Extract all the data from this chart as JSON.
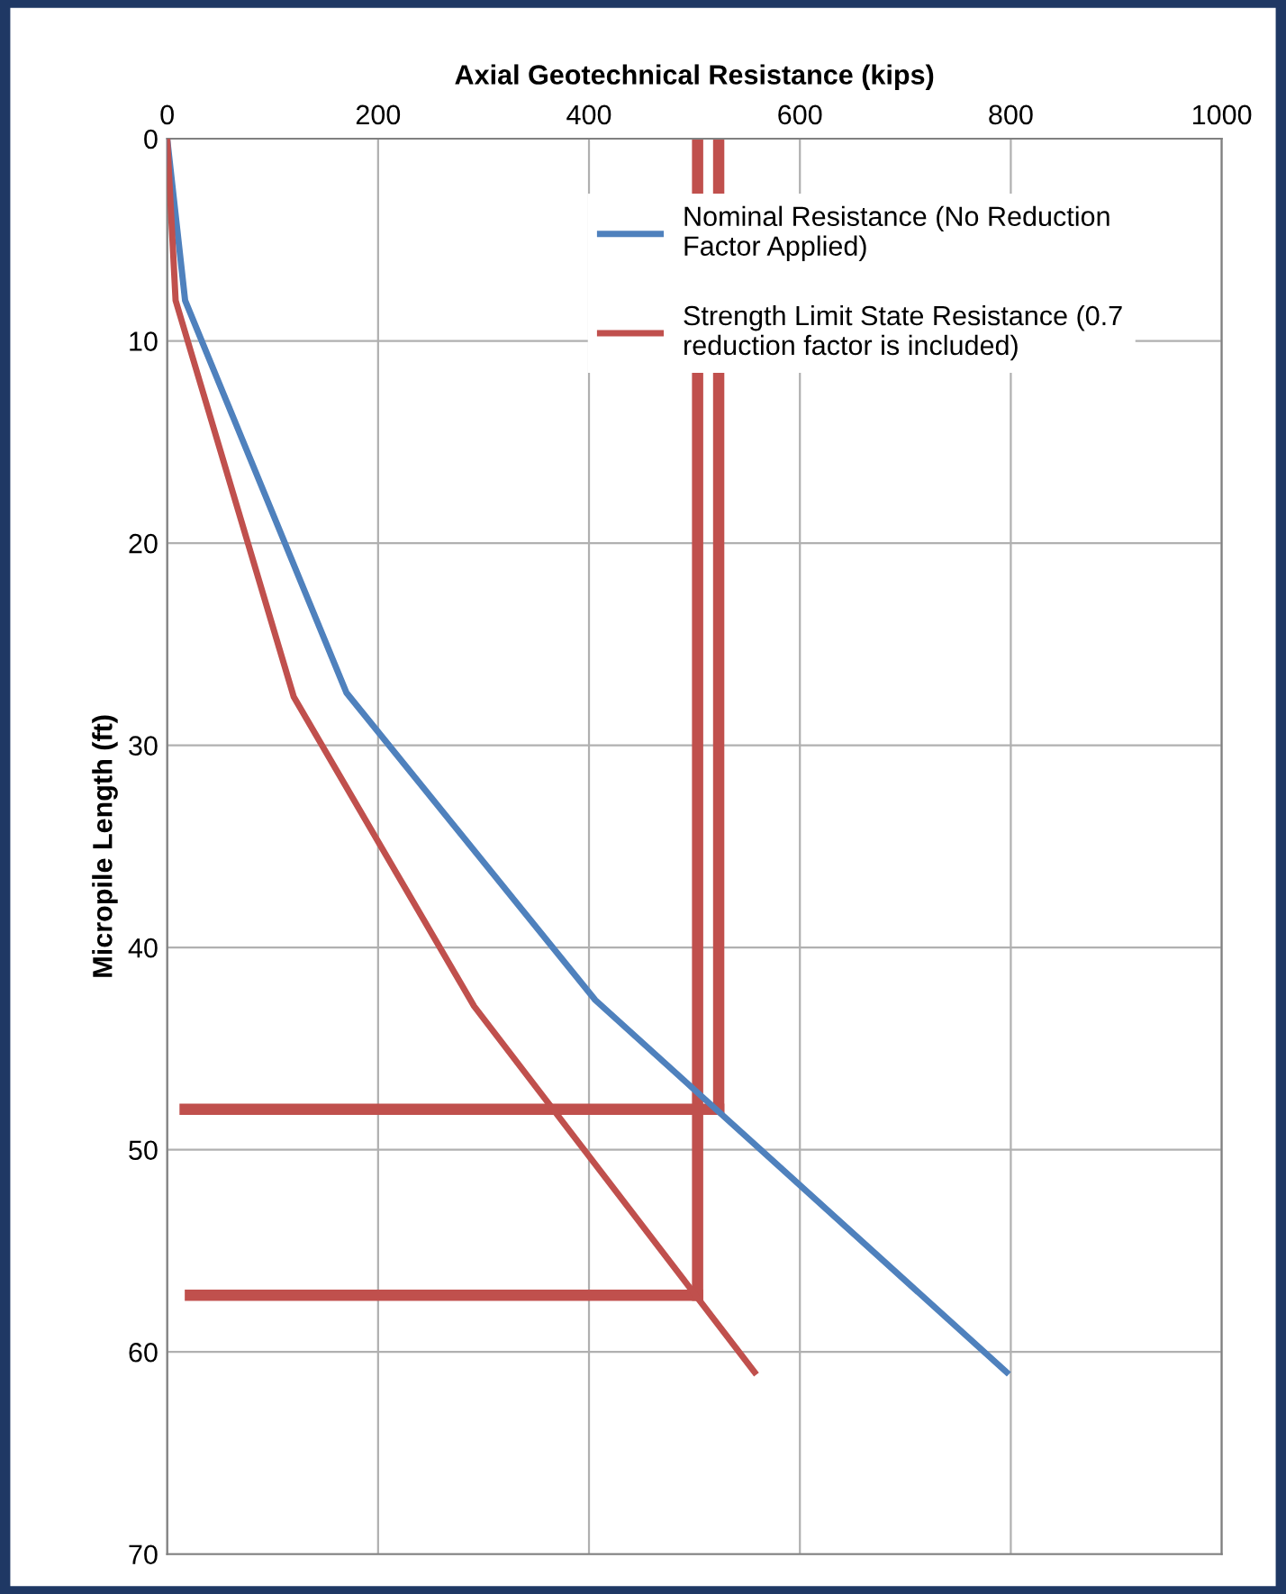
{
  "chart_data": {
    "type": "line",
    "xlabel": "Axial Geotechnical Resistance (kips)",
    "ylabel": "Micropile Length (ft)",
    "xlim": [
      0,
      1000
    ],
    "xticks": [
      0,
      200,
      400,
      600,
      800,
      1000
    ],
    "ylim": [
      70,
      0
    ],
    "yticks": [
      0,
      10,
      20,
      30,
      40,
      50,
      60,
      70
    ],
    "grid": true,
    "legend": "top right",
    "series": [
      {
        "name": "Nominal Resistance (No Reduction\nFactor Applied)",
        "color": "#4f81bd",
        "x": [
          0,
          17,
          170,
          406,
          796
        ],
        "values": [
          0,
          8,
          27.4,
          42.6,
          61
        ]
      },
      {
        "name": "Strength Limit State Resistance (0.7\nreduction factor is included)",
        "color": "#c0504d",
        "x": [
          0,
          8,
          120,
          291,
          557
        ],
        "values": [
          0,
          8,
          27.6,
          42.9,
          61
        ]
      },
      {
        "color": "#c0504d",
        "x": [
          503,
          503
        ],
        "values": [
          0,
          57.2
        ]
      },
      {
        "color": "#c0504d",
        "x": [
          523,
          523
        ],
        "values": [
          0,
          48
        ]
      },
      {
        "color": "#c0504d",
        "x": [
          17,
          523
        ],
        "values": [
          48,
          48
        ]
      },
      {
        "color": "#c0504d",
        "x": [
          22,
          503
        ],
        "values": [
          57.2,
          57.2
        ]
      }
    ]
  }
}
